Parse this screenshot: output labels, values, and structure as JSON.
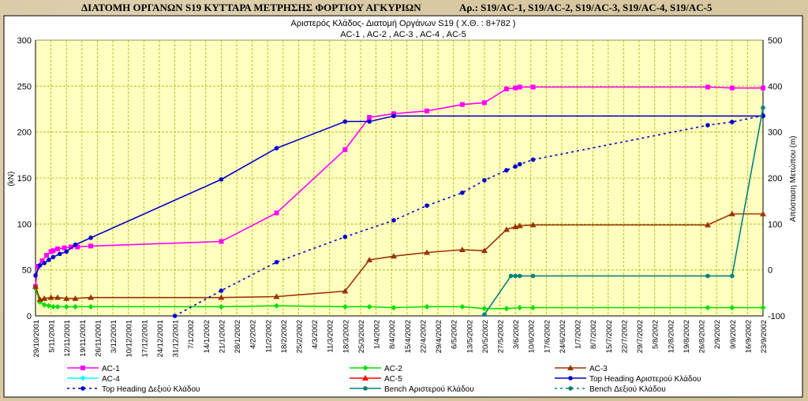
{
  "header": {
    "title": "ΔΙΑΤΟΜΗ ΟΡΓΑΝΩΝ S19 ΚΥΤΤΑΡΑ ΜΕΤΡΗΣΗΣ ΦΟΡΤΙΟΥ ΑΓΚΥΡΙΩΝ",
    "ar": "Αρ.:  S19/AC-1,  S19/AC-2, S19/AC-3, S19/AC-4,  S19/AC-5"
  },
  "colors": {
    "background": "#d9c9a3",
    "plot": "#ffffc0",
    "grid": "#b0b000"
  },
  "chart_data": {
    "type": "line",
    "title": "Αριστερός Κλάδος- Διατομή Οργάνων S19 ( Χ.Θ. :  8+782 )",
    "subtitle": "AC-1 , AC-2 , AC-3 , AC-4 , AC-5",
    "ylabel": "(kN)",
    "y2label": "Απόσταση Μετώπου (m)",
    "xlabel": "",
    "ylim": [
      0,
      300
    ],
    "y2lim": [
      -100,
      500
    ],
    "yticks": [
      0,
      50,
      100,
      150,
      200,
      250,
      300
    ],
    "y2ticks": [
      -100,
      0,
      100,
      200,
      300,
      400,
      500
    ],
    "xlim": [
      "2001-10-29",
      "2002-09-23"
    ],
    "xticks": [
      "29/10/2001",
      "5/11/2001",
      "12/11/2001",
      "19/11/2001",
      "26/11/2001",
      "3/12/2001",
      "10/12/2001",
      "17/12/2001",
      "24/12/2001",
      "31/12/2001",
      "7/1/2002",
      "14/1/2002",
      "21/1/2002",
      "28/1/2002",
      "4/2/2002",
      "11/2/2002",
      "18/2/2002",
      "25/2/2002",
      "4/3/2002",
      "11/3/2002",
      "18/3/2002",
      "25/3/2002",
      "1/4/2002",
      "8/4/2002",
      "15/4/2002",
      "22/4/2002",
      "29/4/2002",
      "6/5/2002",
      "13/5/2002",
      "20/5/2002",
      "27/5/2002",
      "3/6/2002",
      "10/6/2002",
      "17/6/2002",
      "24/6/2002",
      "1/7/2002",
      "8/7/2002",
      "15/7/2002",
      "22/7/2002",
      "29/7/2002",
      "5/8/2002",
      "12/8/2002",
      "19/8/2002",
      "26/8/2002",
      "2/9/2002",
      "9/9/2002",
      "16/9/2002",
      "23/9/2002"
    ],
    "grid": true,
    "legend_position": "bottom",
    "series": [
      {
        "name": "AC-1",
        "axis": "left",
        "color": "#ff00ff",
        "style": "solid",
        "marker": "square",
        "points": [
          [
            "2001-10-29",
            32
          ],
          [
            "2001-10-30",
            54
          ],
          [
            "2001-11-01",
            60
          ],
          [
            "2001-11-03",
            66
          ],
          [
            "2001-11-05",
            70
          ],
          [
            "2001-11-06",
            71
          ],
          [
            "2001-11-08",
            73
          ],
          [
            "2001-11-11",
            74
          ],
          [
            "2001-11-14",
            75
          ],
          [
            "2001-11-17",
            75
          ],
          [
            "2001-11-23",
            76
          ],
          [
            "2002-01-21",
            81
          ],
          [
            "2002-02-15",
            112
          ],
          [
            "2002-03-18",
            181
          ],
          [
            "2002-03-29",
            216
          ],
          [
            "2002-04-09",
            220
          ],
          [
            "2002-04-24",
            223
          ],
          [
            "2002-05-10",
            230
          ],
          [
            "2002-05-20",
            232
          ],
          [
            "2002-05-30",
            247
          ],
          [
            "2002-06-03",
            248
          ],
          [
            "2002-06-05",
            249
          ],
          [
            "2002-06-11",
            249
          ],
          [
            "2002-08-29",
            249
          ],
          [
            "2002-09-09",
            248
          ],
          [
            "2002-09-23",
            248
          ]
        ]
      },
      {
        "name": "AC-2",
        "axis": "left",
        "color": "#00e000",
        "style": "solid",
        "marker": "diamond",
        "points": [
          [
            "2001-10-29",
            30
          ],
          [
            "2001-10-31",
            15
          ],
          [
            "2001-11-02",
            12
          ],
          [
            "2001-11-04",
            11
          ],
          [
            "2001-11-06",
            10
          ],
          [
            "2001-11-08",
            10
          ],
          [
            "2001-11-12",
            10
          ],
          [
            "2001-11-16",
            10
          ],
          [
            "2001-11-23",
            10
          ],
          [
            "2002-01-21",
            10
          ],
          [
            "2002-02-15",
            11
          ],
          [
            "2002-03-18",
            10
          ],
          [
            "2002-03-29",
            10
          ],
          [
            "2002-04-09",
            9
          ],
          [
            "2002-04-24",
            10
          ],
          [
            "2002-05-10",
            10
          ],
          [
            "2002-05-20",
            8
          ],
          [
            "2002-05-30",
            8
          ],
          [
            "2002-06-05",
            9
          ],
          [
            "2002-06-11",
            9
          ],
          [
            "2002-08-29",
            9
          ],
          [
            "2002-09-09",
            9
          ],
          [
            "2002-09-23",
            9
          ]
        ]
      },
      {
        "name": "AC-3",
        "axis": "left",
        "color": "#993300",
        "style": "solid",
        "marker": "triangle",
        "points": [
          [
            "2001-10-29",
            32
          ],
          [
            "2001-10-31",
            18
          ],
          [
            "2001-11-02",
            19
          ],
          [
            "2001-11-05",
            20
          ],
          [
            "2001-11-08",
            20
          ],
          [
            "2001-11-12",
            19
          ],
          [
            "2001-11-16",
            19
          ],
          [
            "2001-11-23",
            20
          ],
          [
            "2002-01-21",
            20
          ],
          [
            "2002-02-15",
            21
          ],
          [
            "2002-03-18",
            27
          ],
          [
            "2002-03-29",
            61
          ],
          [
            "2002-04-09",
            65
          ],
          [
            "2002-04-24",
            69
          ],
          [
            "2002-05-10",
            72
          ],
          [
            "2002-05-20",
            71
          ],
          [
            "2002-05-30",
            94
          ],
          [
            "2002-06-03",
            97
          ],
          [
            "2002-06-05",
            98
          ],
          [
            "2002-06-11",
            99
          ],
          [
            "2002-08-29",
            99
          ],
          [
            "2002-09-09",
            111
          ],
          [
            "2002-09-23",
            111
          ]
        ]
      },
      {
        "name": "AC-4",
        "axis": "left",
        "color": "#00ffff",
        "style": "solid",
        "marker": "diamond",
        "points": []
      },
      {
        "name": "AC-5",
        "axis": "left",
        "color": "#ff0000",
        "style": "solid",
        "marker": "triangle",
        "points": []
      },
      {
        "name": "Top Heading Αριστερού Κλάδου",
        "axis": "right",
        "color": "#0000cc",
        "style": "solid",
        "marker": "circle",
        "points": [
          [
            "2001-10-29",
            -12
          ],
          [
            "2001-10-31",
            10
          ],
          [
            "2001-11-02",
            15
          ],
          [
            "2001-11-04",
            22
          ],
          [
            "2001-11-06",
            28
          ],
          [
            "2001-11-09",
            35
          ],
          [
            "2001-11-12",
            40
          ],
          [
            "2001-11-16",
            55
          ],
          [
            "2001-11-23",
            70
          ],
          [
            "2002-01-21",
            197
          ],
          [
            "2002-02-15",
            265
          ],
          [
            "2002-03-18",
            323
          ],
          [
            "2002-03-29",
            323
          ],
          [
            "2002-04-09",
            335
          ],
          [
            "2002-09-23",
            335
          ]
        ]
      },
      {
        "name": "Top Heading Δεξιού Κλάδου",
        "axis": "right",
        "color": "#0000cc",
        "style": "dotted",
        "marker": "circle",
        "points": [
          [
            "2001-12-31",
            -100
          ],
          [
            "2002-01-21",
            -45
          ],
          [
            "2002-02-15",
            17
          ],
          [
            "2002-03-18",
            72
          ],
          [
            "2002-04-09",
            108
          ],
          [
            "2002-04-24",
            140
          ],
          [
            "2002-05-10",
            168
          ],
          [
            "2002-05-20",
            195
          ],
          [
            "2002-05-30",
            217
          ],
          [
            "2002-06-03",
            225
          ],
          [
            "2002-06-05",
            230
          ],
          [
            "2002-06-11",
            240
          ],
          [
            "2002-08-29",
            315
          ],
          [
            "2002-09-09",
            322
          ],
          [
            "2002-09-23",
            336
          ]
        ]
      },
      {
        "name": "Bench Αριστερού Κλάδου",
        "axis": "right",
        "color": "#008080",
        "style": "solid",
        "marker": "circle",
        "points": [
          [
            "2002-05-20",
            -97
          ],
          [
            "2002-06-01",
            -13
          ],
          [
            "2002-06-03",
            -13
          ],
          [
            "2002-06-05",
            -13
          ],
          [
            "2002-06-11",
            -13
          ],
          [
            "2002-08-29",
            -13
          ],
          [
            "2002-09-09",
            -13
          ],
          [
            "2002-09-23",
            353
          ]
        ]
      },
      {
        "name": "Bench Δεξιού Κλάδου",
        "axis": "right",
        "color": "#008080",
        "style": "dotted",
        "marker": "circle",
        "points": []
      }
    ]
  }
}
